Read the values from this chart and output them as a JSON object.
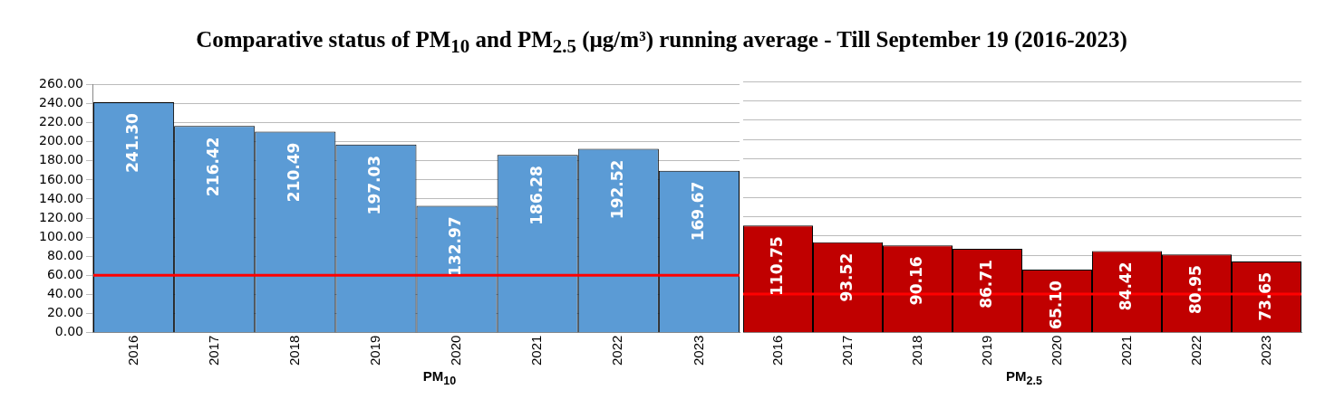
{
  "chart_data": [
    {
      "type": "bar",
      "title": "Comparative status of PM$_{10}$ and PM$_{2.5}$ (µg/m³) running average - Till September 19 (2016-2023)",
      "xlabel": "PM$_{10}$",
      "categories": [
        "2016",
        "2017",
        "2018",
        "2019",
        "2020",
        "2021",
        "2022",
        "2023"
      ],
      "values": [
        241.3,
        216.42,
        210.49,
        197.03,
        132.97,
        186.28,
        192.52,
        169.67
      ],
      "value_labels": [
        "241.30",
        "216.42",
        "210.49",
        "197.03",
        "132.97",
        "186.28",
        "192.52",
        "169.67"
      ],
      "color": "#5b9bd5",
      "ylim": [
        0,
        260
      ],
      "yticks": [
        {
          "value": 0,
          "label": "0.00"
        },
        {
          "value": 20,
          "label": "20.00"
        },
        {
          "value": 40,
          "label": "40.00"
        },
        {
          "value": 60,
          "label": "60.00"
        },
        {
          "value": 80,
          "label": "80.00"
        },
        {
          "value": 100,
          "label": "100.00"
        },
        {
          "value": 120,
          "label": "120.00"
        },
        {
          "value": 140,
          "label": "140.00"
        },
        {
          "value": 160,
          "label": "160.00"
        },
        {
          "value": 180,
          "label": "180.00"
        },
        {
          "value": 200,
          "label": "200.00"
        },
        {
          "value": 220,
          "label": "220.00"
        },
        {
          "value": 240,
          "label": "240.00"
        },
        {
          "value": 260,
          "label": "260.00"
        }
      ],
      "grid": "y",
      "legend": false,
      "ref_lines": [
        {
          "axis": "y",
          "value": 60,
          "color": "#ff0000"
        }
      ]
    },
    {
      "type": "bar",
      "xlabel": "PM$_{2.5}$",
      "categories": [
        "2016",
        "2017",
        "2018",
        "2019",
        "2020",
        "2021",
        "2022",
        "2023"
      ],
      "values": [
        110.75,
        93.52,
        90.16,
        86.71,
        65.1,
        84.42,
        80.95,
        73.65
      ],
      "value_labels": [
        "110.75",
        "93.52",
        "90.16",
        "86.71",
        "65.10",
        "84.42",
        "80.95",
        "73.65"
      ],
      "color": "#c00000",
      "ylim": [
        0,
        260
      ],
      "yticks": [
        0,
        20,
        40,
        60,
        80,
        100,
        120,
        140,
        160,
        180,
        200,
        220,
        240,
        260
      ],
      "grid": "y",
      "legend": false,
      "tick_labels": "x",
      "ref_lines": [
        {
          "axis": "y",
          "value": 40,
          "color": "#ff0000"
        }
      ]
    }
  ]
}
